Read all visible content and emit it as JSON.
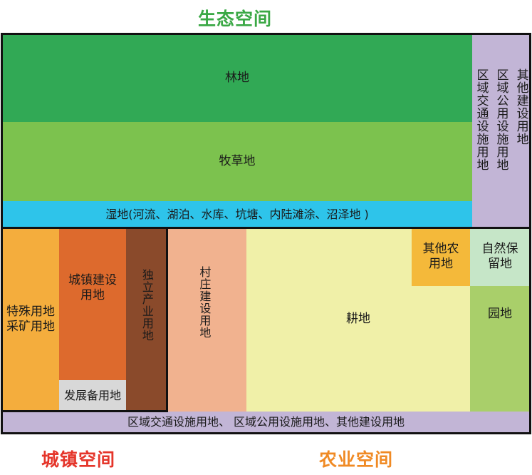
{
  "titles": {
    "ecological": "生态空间",
    "urban": "城镇空间",
    "agricultural": "农业空间"
  },
  "zones": {
    "forest": "林地",
    "grassland": "牧草地",
    "wetland": "湿地(河流、湖泊、水库、坑塘、内陆滩涂、沼泽地 )",
    "other_construction": "其他建设用地",
    "public_facility": "区域公用设施用地",
    "transport_facility": "区域交通设施用地",
    "special_mining": "特殊用地采矿用地",
    "urban_construction": "城镇建设用地",
    "development_reserve": "发展备用地",
    "independent_industry": "独立产业用地",
    "village_construction": "村庄建设用地",
    "cropland": "耕地",
    "other_agricultural": "其他农用地",
    "nature_reserve": "自然保留地",
    "orchard": "园地",
    "bottom_strip": "区域交通设施用地、 区域公用设施用地、其他建设用地"
  },
  "colors": {
    "title_green": "#3aa845",
    "title_red": "#e5352a",
    "title_orange": "#f08a24",
    "forest": "#31a955",
    "grassland": "#7cc24e",
    "wetland": "#2ec4ea",
    "lavender": "#c2b5d6",
    "special": "#f4ad3d",
    "urban": "#dd6a2d",
    "industry": "#8a4a2b",
    "reserve_gray": "#d8d8d8",
    "village": "#f1b28f",
    "cropland": "#f0f0a8",
    "other_agri": "#f4b93a",
    "nature_reserve": "#c6e6c8",
    "orchard": "#a9cf6a"
  }
}
